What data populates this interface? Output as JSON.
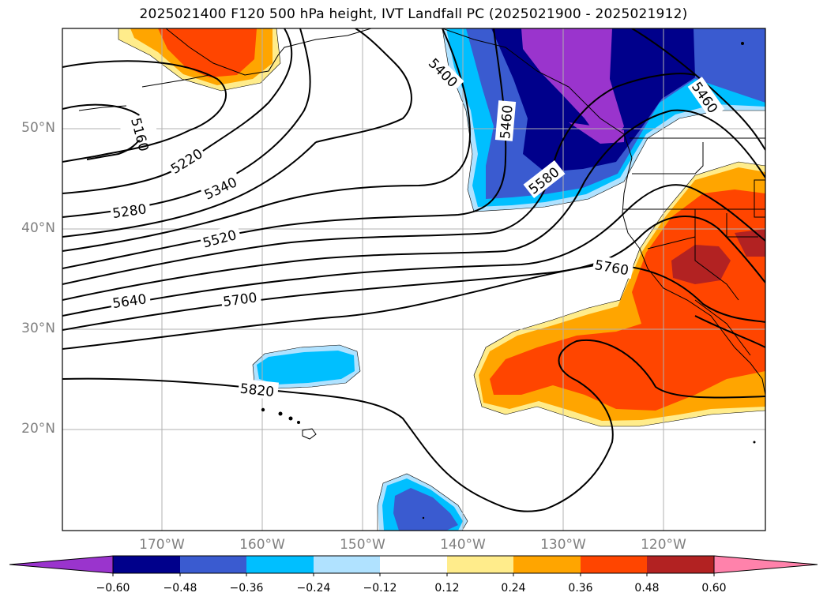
{
  "title": "2025021400 F120 500 hPa height, IVT Landfall PC (2025021900 - 2025021912)",
  "lat_labels": [
    "50°N",
    "40°N",
    "30°N",
    "20°N"
  ],
  "lon_labels": [
    "170°W",
    "160°W",
    "150°W",
    "140°W",
    "130°W",
    "120°W"
  ],
  "contour_labels": [
    "5160",
    "5220",
    "5280",
    "5340",
    "5400",
    "5460",
    "5460",
    "5520",
    "5580",
    "5640",
    "5700",
    "5760",
    "5820"
  ],
  "colorbar": {
    "ticks": [
      "−0.60",
      "−0.48",
      "−0.36",
      "−0.24",
      "−0.12",
      "0.12",
      "0.24",
      "0.36",
      "0.48",
      "0.60"
    ],
    "colors": [
      "#9a34cd",
      "#00008b",
      "#3a5bd0",
      "#00bfff",
      "#b0e2ff",
      "#ffffff",
      "#ffec8b",
      "#ffa500",
      "#ff4500",
      "#b22222",
      "#ff82ab"
    ]
  },
  "shading_colors": {
    "neg_light": "#b0e2ff",
    "neg_mid": "#00bfff",
    "neg_blue": "#3a5bd0",
    "neg_dark": "#00008b",
    "neg_purple": "#9a34cd",
    "pos_light": "#ffec8b",
    "pos_orange": "#ffa500",
    "pos_red": "#ff4500",
    "pos_dark": "#b22222"
  }
}
